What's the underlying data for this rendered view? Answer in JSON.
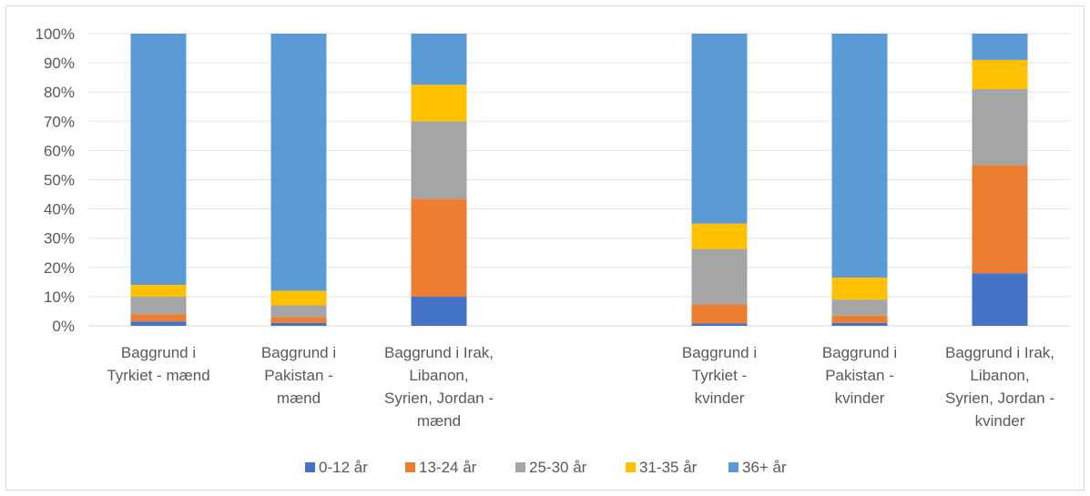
{
  "chart_data": {
    "type": "bar",
    "stacked": "percent",
    "categories": [
      [
        "Baggrund i",
        "Tyrkiet - mænd"
      ],
      [
        "Baggrund i",
        "Pakistan -",
        "mænd"
      ],
      [
        "Baggrund i Irak,",
        "Libanon,",
        "Syrien, Jordan -",
        "mænd"
      ],
      [
        "Baggrund i",
        "Tyrkiet -",
        "kvinder"
      ],
      [
        "Baggrund i",
        "Pakistan -",
        "kvinder"
      ],
      [
        "Baggrund i Irak,",
        "Libanon,",
        "Syrien, Jordan -",
        "kvinder"
      ]
    ],
    "gap_after_index": 2,
    "series": [
      {
        "name": "0-12 år",
        "color": "#4472c4",
        "values": [
          1.5,
          1,
          10,
          0.8,
          1,
          18
        ]
      },
      {
        "name": "13-24 år",
        "color": "#ed7d31",
        "values": [
          2.5,
          2,
          33.5,
          6.5,
          2.5,
          37
        ]
      },
      {
        "name": "25-30 år",
        "color": "#a5a5a5",
        "values": [
          6,
          4,
          26.5,
          19,
          5.5,
          26
        ]
      },
      {
        "name": "31-35 år",
        "color": "#ffc000",
        "values": [
          4,
          5,
          12.5,
          8.7,
          7.5,
          10
        ]
      },
      {
        "name": "36+ år",
        "color": "#5b9bd5",
        "values": [
          86,
          88,
          17.5,
          65,
          83.5,
          9
        ]
      }
    ],
    "yticks": [
      "0%",
      "10%",
      "20%",
      "30%",
      "40%",
      "50%",
      "60%",
      "70%",
      "80%",
      "90%",
      "100%"
    ],
    "ylim": [
      0,
      100
    ],
    "grid": true,
    "legend_position": "bottom"
  }
}
